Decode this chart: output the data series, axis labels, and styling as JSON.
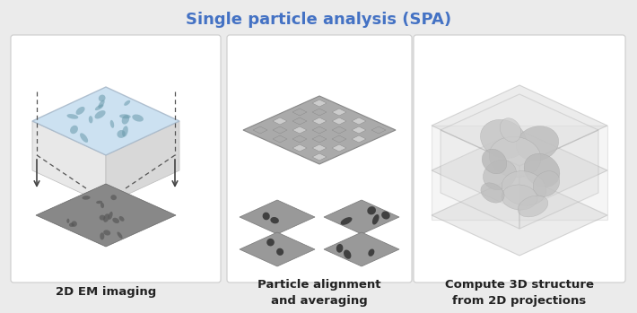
{
  "title": "Single particle analysis (SPA)",
  "title_color": "#4472C4",
  "title_fontsize": 13,
  "background_color": "#ebebeb",
  "panel_bg": "#ffffff",
  "panel_labels": [
    "2D EM imaging",
    "Particle alignment\nand averaging",
    "Compute 3D structure\nfrom 2D projections"
  ],
  "label_fontsize": 9.5,
  "label_fontweight": "bold"
}
